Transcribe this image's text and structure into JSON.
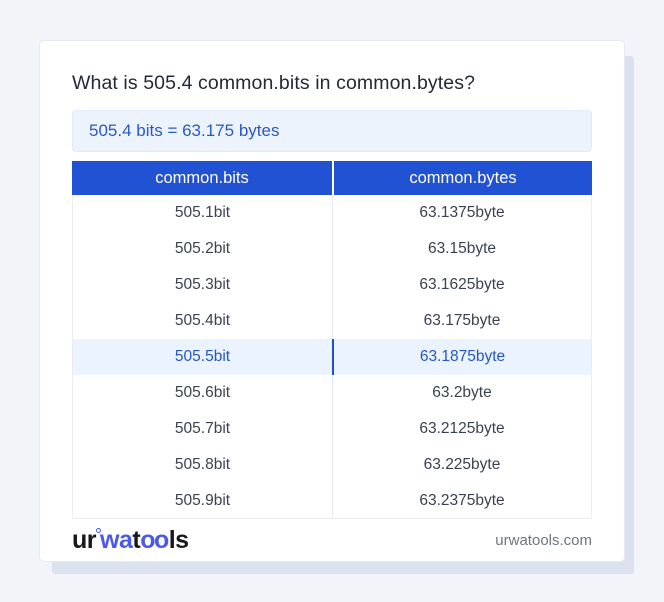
{
  "question": "What is 505.4 common.bits in common.bytes?",
  "result": "505.4 bits = 63.175 bytes",
  "table": {
    "columns": [
      "common.bits",
      "common.bytes"
    ],
    "rows": [
      {
        "bits": "505.1bit",
        "bytes": "63.1375byte",
        "highlight": false
      },
      {
        "bits": "505.2bit",
        "bytes": "63.15byte",
        "highlight": false
      },
      {
        "bits": "505.3bit",
        "bytes": "63.1625byte",
        "highlight": false
      },
      {
        "bits": "505.4bit",
        "bytes": "63.175byte",
        "highlight": false
      },
      {
        "bits": "505.5bit",
        "bytes": "63.1875byte",
        "highlight": true
      },
      {
        "bits": "505.6bit",
        "bytes": "63.2byte",
        "highlight": false
      },
      {
        "bits": "505.7bit",
        "bytes": "63.2125byte",
        "highlight": false
      },
      {
        "bits": "505.8bit",
        "bytes": "63.225byte",
        "highlight": false
      },
      {
        "bits": "505.9bit",
        "bytes": "63.2375byte",
        "highlight": false
      }
    ]
  },
  "footer": {
    "logo": {
      "seg1": "ur",
      "seg2": "wa",
      "seg3": "t",
      "seg4": "oo",
      "seg5": "ls"
    },
    "domain": "urwatools.com"
  },
  "colors": {
    "accent_blue": "#2152d3",
    "result_box_bg": "#edf3fc",
    "result_text": "#2859c5",
    "highlight_row_bg": "#ebf3fe",
    "highlight_text": "#2456c4",
    "highlight_divider": "#1d50d0",
    "page_bg": "#f2f4fa",
    "card_shadow": "#dbe1ee",
    "logo_black": "#17181d",
    "logo_blue": "#4b5ae6",
    "domain_text": "#6e7683"
  }
}
